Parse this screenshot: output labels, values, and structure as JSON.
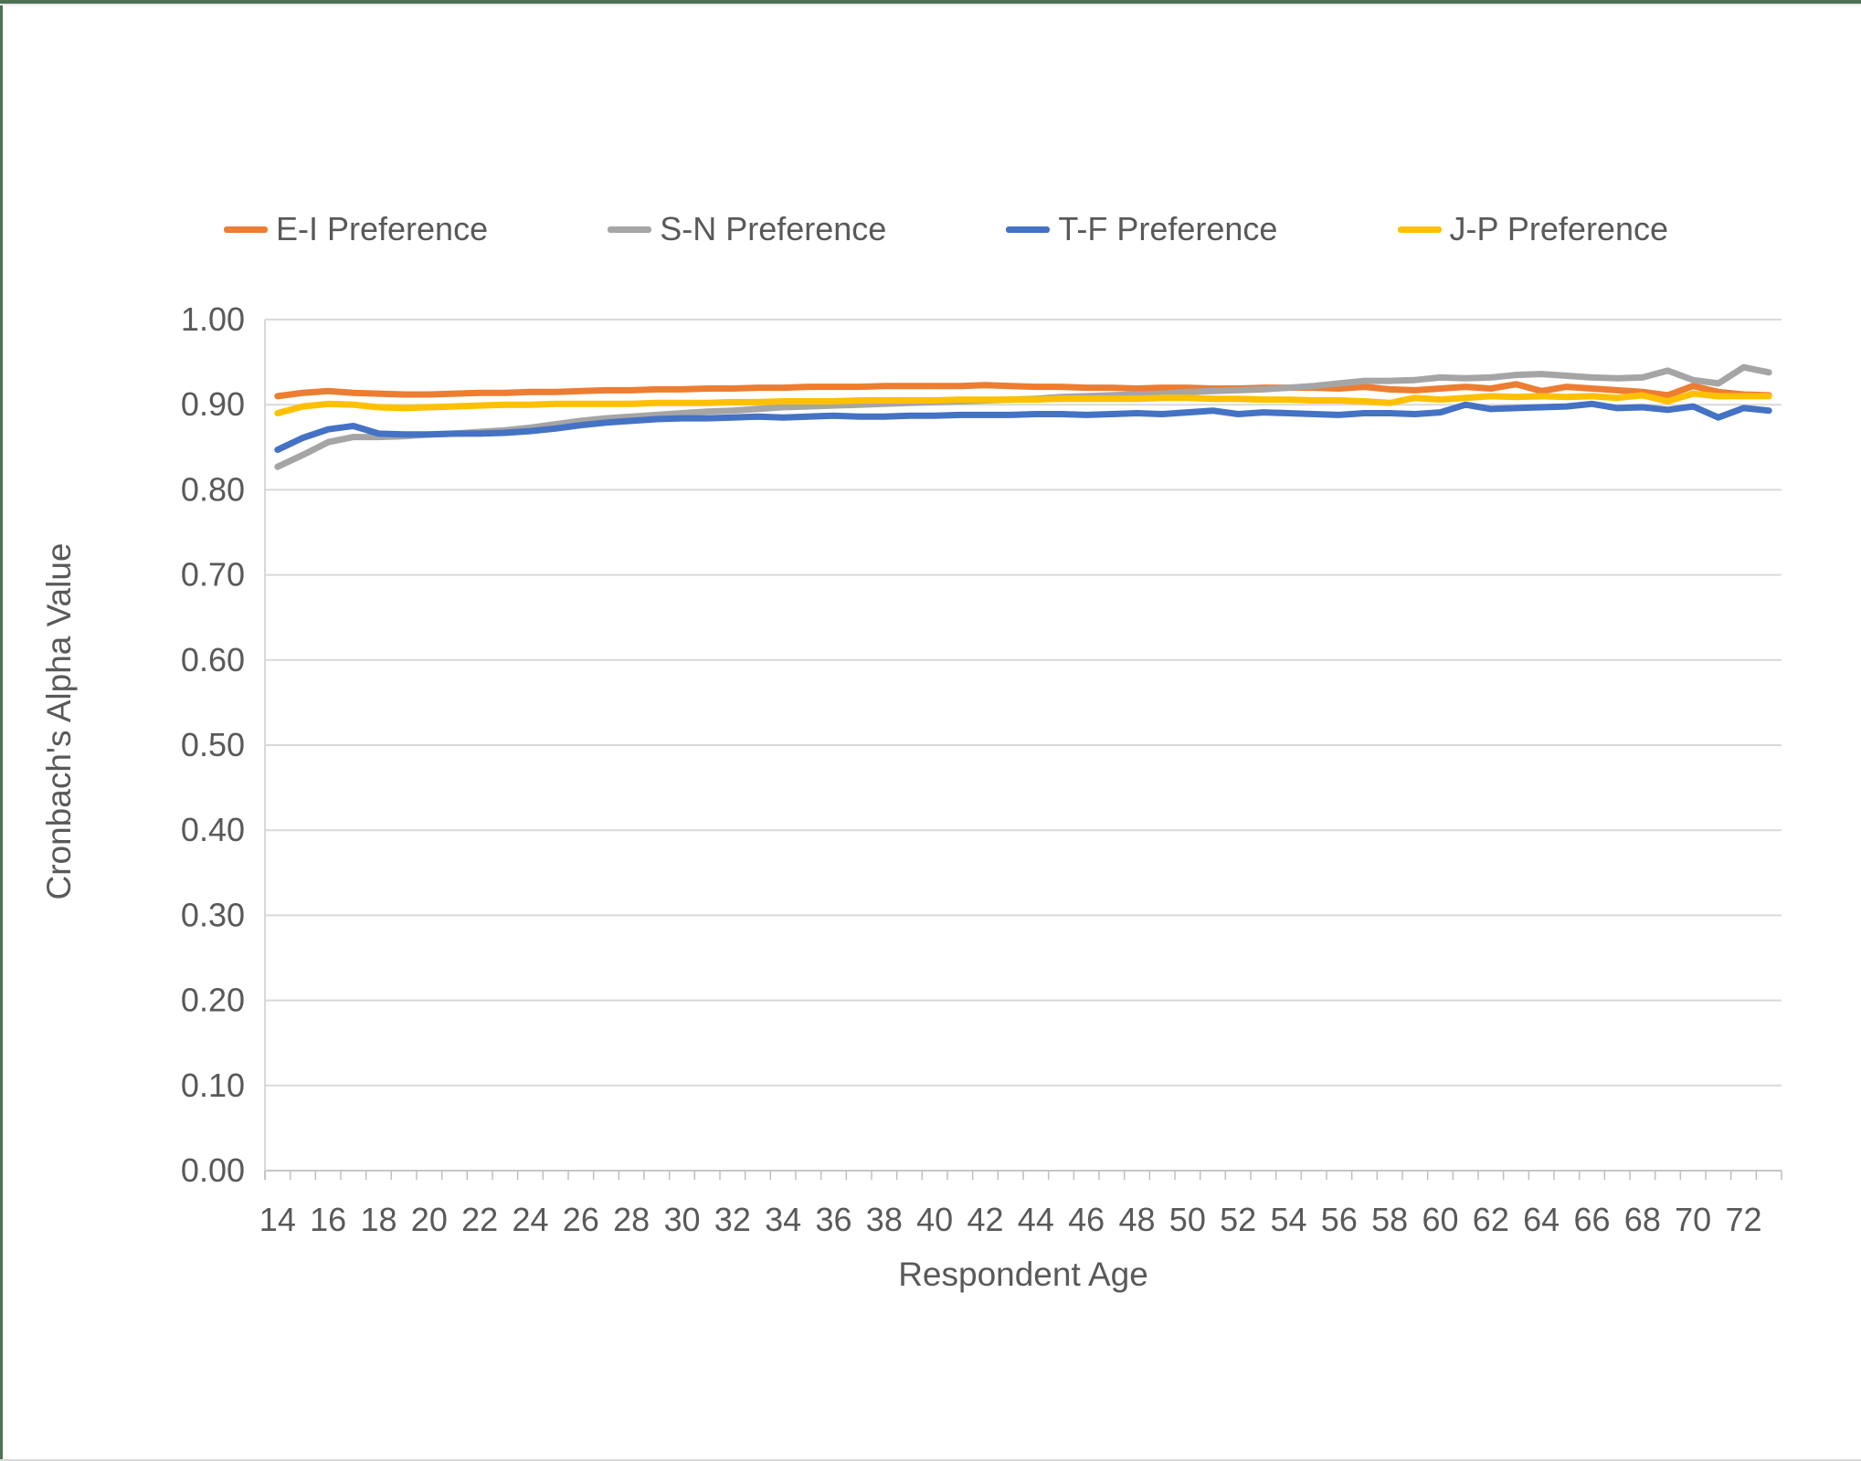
{
  "frame": {
    "border_color": "#4f7254",
    "bottom_line_color": "#d9d9d9"
  },
  "colors": {
    "text": "#595959",
    "gridline": "#d9d9d9",
    "axis_line": "#c6c6c6",
    "tick": "#bfbfbf"
  },
  "chart_data": {
    "type": "line",
    "x_label": "Respondent Age",
    "y_label": "Cronbach's Alpha Value",
    "x": [
      14,
      15,
      16,
      17,
      18,
      19,
      20,
      21,
      22,
      23,
      24,
      25,
      26,
      27,
      28,
      29,
      30,
      31,
      32,
      33,
      34,
      35,
      36,
      37,
      38,
      39,
      40,
      41,
      42,
      43,
      44,
      45,
      46,
      47,
      48,
      49,
      50,
      51,
      52,
      53,
      54,
      55,
      56,
      57,
      58,
      59,
      60,
      61,
      62,
      63,
      64,
      65,
      66,
      67,
      68,
      69,
      70,
      71,
      72,
      73
    ],
    "x_tick_labels": [
      14,
      16,
      18,
      20,
      22,
      24,
      26,
      28,
      30,
      32,
      34,
      36,
      38,
      40,
      42,
      44,
      46,
      48,
      50,
      52,
      54,
      56,
      58,
      60,
      62,
      64,
      66,
      68,
      70,
      72
    ],
    "ylim": [
      0.0,
      1.0
    ],
    "ytick_step": 0.1,
    "grid": true,
    "legend_position": "top",
    "series": [
      {
        "name": "E-I Preference",
        "color": "#ED7D31",
        "values": [
          0.91,
          0.914,
          0.916,
          0.914,
          0.913,
          0.912,
          0.912,
          0.913,
          0.914,
          0.914,
          0.915,
          0.915,
          0.916,
          0.917,
          0.917,
          0.918,
          0.918,
          0.919,
          0.919,
          0.92,
          0.92,
          0.921,
          0.921,
          0.921,
          0.922,
          0.922,
          0.922,
          0.922,
          0.923,
          0.922,
          0.921,
          0.921,
          0.92,
          0.92,
          0.919,
          0.92,
          0.92,
          0.919,
          0.919,
          0.92,
          0.92,
          0.92,
          0.919,
          0.921,
          0.918,
          0.917,
          0.919,
          0.921,
          0.919,
          0.924,
          0.916,
          0.921,
          0.919,
          0.917,
          0.915,
          0.911,
          0.922,
          0.915,
          0.912,
          0.911
        ]
      },
      {
        "name": "S-N Preference",
        "color": "#A5A5A5",
        "values": [
          0.827,
          0.841,
          0.856,
          0.862,
          0.862,
          0.863,
          0.865,
          0.866,
          0.868,
          0.87,
          0.873,
          0.877,
          0.881,
          0.884,
          0.886,
          0.888,
          0.89,
          0.892,
          0.893,
          0.895,
          0.897,
          0.898,
          0.899,
          0.9,
          0.901,
          0.902,
          0.903,
          0.904,
          0.905,
          0.906,
          0.907,
          0.909,
          0.91,
          0.911,
          0.912,
          0.913,
          0.915,
          0.916,
          0.917,
          0.918,
          0.92,
          0.922,
          0.925,
          0.928,
          0.928,
          0.929,
          0.932,
          0.931,
          0.932,
          0.935,
          0.936,
          0.934,
          0.932,
          0.931,
          0.932,
          0.94,
          0.929,
          0.925,
          0.944,
          0.938
        ]
      },
      {
        "name": "T-F Preference",
        "color": "#4472C4",
        "values": [
          0.847,
          0.861,
          0.871,
          0.875,
          0.866,
          0.865,
          0.865,
          0.866,
          0.866,
          0.867,
          0.869,
          0.872,
          0.876,
          0.879,
          0.881,
          0.883,
          0.884,
          0.884,
          0.885,
          0.886,
          0.885,
          0.886,
          0.887,
          0.886,
          0.886,
          0.887,
          0.887,
          0.888,
          0.888,
          0.888,
          0.889,
          0.889,
          0.888,
          0.889,
          0.89,
          0.889,
          0.891,
          0.893,
          0.889,
          0.891,
          0.89,
          0.889,
          0.888,
          0.89,
          0.89,
          0.889,
          0.891,
          0.9,
          0.895,
          0.896,
          0.897,
          0.898,
          0.901,
          0.896,
          0.897,
          0.894,
          0.898,
          0.885,
          0.896,
          0.893
        ]
      },
      {
        "name": "J-P Preference",
        "color": "#FFC000",
        "values": [
          0.89,
          0.898,
          0.901,
          0.9,
          0.897,
          0.896,
          0.897,
          0.898,
          0.899,
          0.9,
          0.9,
          0.901,
          0.901,
          0.901,
          0.901,
          0.902,
          0.902,
          0.902,
          0.903,
          0.903,
          0.904,
          0.904,
          0.904,
          0.905,
          0.905,
          0.905,
          0.905,
          0.906,
          0.906,
          0.906,
          0.906,
          0.907,
          0.907,
          0.907,
          0.907,
          0.908,
          0.908,
          0.907,
          0.907,
          0.906,
          0.906,
          0.905,
          0.905,
          0.904,
          0.902,
          0.908,
          0.906,
          0.908,
          0.91,
          0.909,
          0.91,
          0.909,
          0.91,
          0.908,
          0.911,
          0.904,
          0.913,
          0.91,
          0.91,
          0.91
        ]
      }
    ]
  }
}
